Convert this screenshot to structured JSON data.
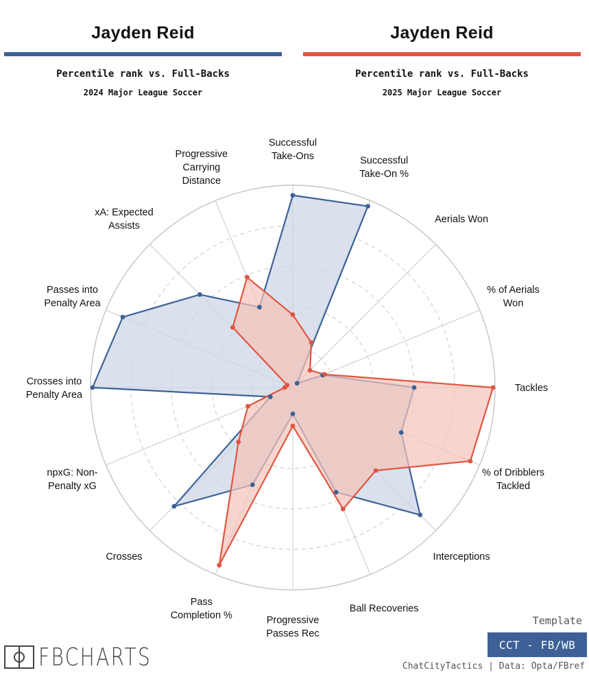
{
  "left_header": {
    "player": "Jayden Reid",
    "subtitle": "Percentile rank vs. Full-Backs",
    "season": "2024 Major League Soccer",
    "color": "#3d6196"
  },
  "right_header": {
    "player": "Jayden Reid",
    "subtitle": "Percentile rank vs. Full-Backs",
    "season": "2025 Major League Soccer",
    "color": "#e0553f"
  },
  "chart_data": {
    "type": "radar",
    "title": "Jayden Reid: Percentile rank vs. Full-Backs",
    "rlim": [
      0,
      100
    ],
    "grid_rings": [
      20,
      40,
      60,
      80,
      100
    ],
    "categories": [
      [
        "Successful",
        "Take-Ons"
      ],
      [
        "Successful",
        "Take-On %"
      ],
      [
        "Aerials Won"
      ],
      [
        "% of Aerials",
        "Won"
      ],
      [
        "Tackles"
      ],
      [
        "% of Dribblers",
        "Tackled"
      ],
      [
        "Interceptions"
      ],
      [
        "Ball Recoveries"
      ],
      [
        "Progressive",
        "Passes Rec"
      ],
      [
        "Pass",
        "Completion %"
      ],
      [
        "Crosses"
      ],
      [
        "npxG: Non-",
        "Penalty xG"
      ],
      [
        "Crosses into",
        "Penalty Area"
      ],
      [
        "Passes into",
        "Penalty Area"
      ],
      [
        "xA: Expected",
        "Assists"
      ],
      [
        "Progressive",
        "Carrying",
        "Distance"
      ]
    ],
    "series": [
      {
        "name": "2024 Major League Soccer",
        "color": "#3d6196",
        "fill": "#ccd6e6",
        "values": [
          95,
          97,
          3,
          16,
          60,
          58,
          89,
          56,
          13,
          52,
          83,
          12,
          99,
          91,
          65,
          43
        ]
      },
      {
        "name": "2025 Major League Soccer",
        "color": "#e0553f",
        "fill": "#f4c4ba",
        "values": [
          36,
          24,
          12,
          17,
          99,
          95,
          58,
          65,
          19,
          95,
          38,
          24,
          4,
          3,
          42,
          59
        ]
      }
    ]
  },
  "footer": {
    "logo_text": "FBCHARTS",
    "template_label": "Template",
    "badge": "CCT - FB/WB",
    "credit": "ChatCityTactics | Data: Opta/FBref"
  }
}
